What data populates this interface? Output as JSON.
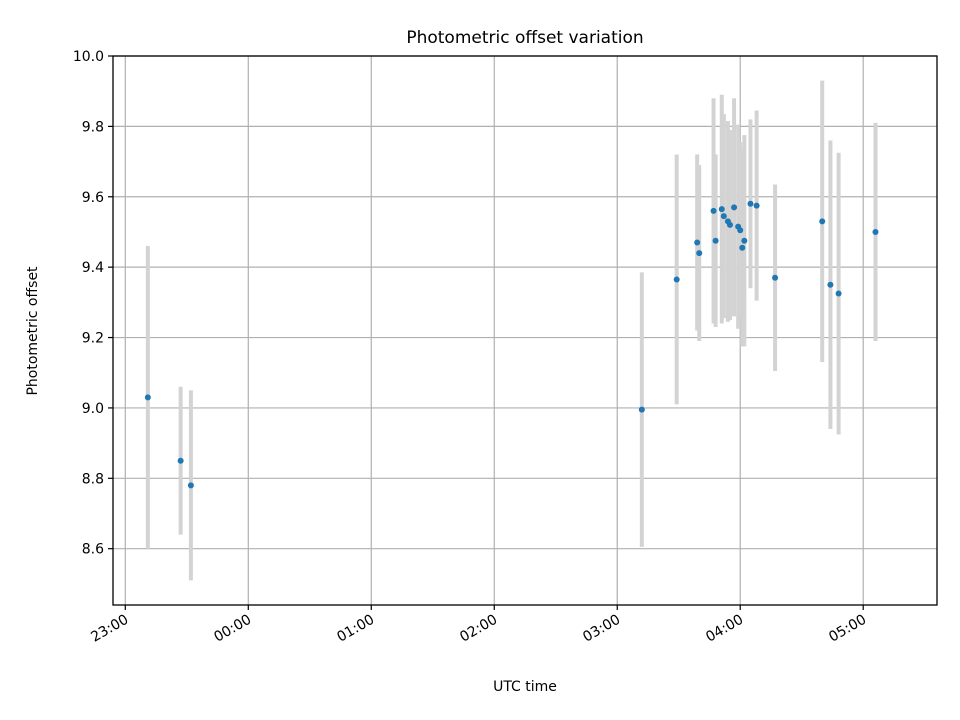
{
  "chart_data": {
    "type": "scatter",
    "title": "Photometric offset variation",
    "xlabel": "UTC time",
    "ylabel": "Photometric offset",
    "x_ticks": [
      "23:00",
      "00:00",
      "01:00",
      "02:00",
      "03:00",
      "04:00",
      "05:00"
    ],
    "y_ticks": [
      "8.6",
      "8.8",
      "9.0",
      "9.2",
      "9.4",
      "9.6",
      "9.8",
      "10.0"
    ],
    "xlim": [
      "22:54",
      "05:36"
    ],
    "ylim": [
      8.44,
      10.0
    ],
    "grid": true,
    "legend": "none",
    "colors": {
      "point": "#1f77b4",
      "errorbar": "#d3d3d3",
      "grid": "#b0b0b0"
    },
    "series": [
      {
        "points": [
          {
            "x": "23:11",
            "y": 9.03,
            "err": 0.43
          },
          {
            "x": "23:27",
            "y": 8.85,
            "err": 0.21
          },
          {
            "x": "23:32",
            "y": 8.78,
            "err": 0.27
          },
          {
            "x": "03:12",
            "y": 8.995,
            "err": 0.39
          },
          {
            "x": "03:29",
            "y": 9.365,
            "err": 0.355
          },
          {
            "x": "03:39",
            "y": 9.47,
            "err": 0.25
          },
          {
            "x": "03:40",
            "y": 9.44,
            "err": 0.25
          },
          {
            "x": "03:47",
            "y": 9.56,
            "err": 0.32
          },
          {
            "x": "03:48",
            "y": 9.475,
            "err": 0.245
          },
          {
            "x": "03:51",
            "y": 9.565,
            "err": 0.325
          },
          {
            "x": "03:52",
            "y": 9.545,
            "err": 0.29
          },
          {
            "x": "03:54",
            "y": 9.53,
            "err": 0.285
          },
          {
            "x": "03:55",
            "y": 9.52,
            "err": 0.27
          },
          {
            "x": "03:57",
            "y": 9.57,
            "err": 0.31
          },
          {
            "x": "03:59",
            "y": 9.515,
            "err": 0.29
          },
          {
            "x": "04:00",
            "y": 9.505,
            "err": 0.25
          },
          {
            "x": "04:01",
            "y": 9.455,
            "err": 0.28
          },
          {
            "x": "04:02",
            "y": 9.475,
            "err": 0.3
          },
          {
            "x": "04:05",
            "y": 9.58,
            "err": 0.24
          },
          {
            "x": "04:08",
            "y": 9.575,
            "err": 0.27
          },
          {
            "x": "04:17",
            "y": 9.37,
            "err": 0.265
          },
          {
            "x": "04:40",
            "y": 9.53,
            "err": 0.4
          },
          {
            "x": "04:44",
            "y": 9.35,
            "err": 0.41
          },
          {
            "x": "04:48",
            "y": 9.325,
            "err": 0.4
          },
          {
            "x": "05:06",
            "y": 9.5,
            "err": 0.31
          }
        ]
      }
    ]
  }
}
